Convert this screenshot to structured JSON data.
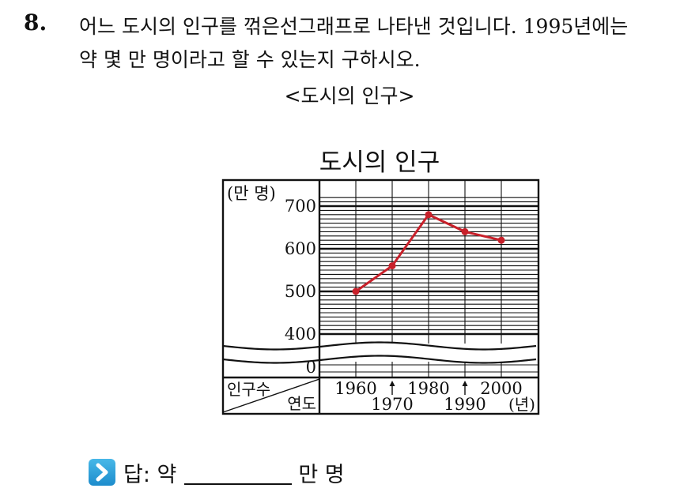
{
  "question": {
    "number": "8.",
    "line1": "어느 도시의 인구를 꺾은선그래프로 나타낸 것입니다. 1995년에는",
    "line2": "약 몇 만 명이라고 할 수 있는지 구하시오.",
    "caption": "<도시의 인구>"
  },
  "chart_data": {
    "type": "line",
    "title": "도시의 인구",
    "ylabel": "(만 명)",
    "xlabel": "(년)",
    "corner_row_label": "인구수",
    "corner_col_label": "연도",
    "x": [
      1960,
      1970,
      1980,
      1990,
      2000
    ],
    "y": [
      500,
      560,
      680,
      640,
      620
    ],
    "series_color": "#c8202a",
    "x_tick_labels_top": [
      "1960",
      "1980",
      "2000"
    ],
    "x_tick_labels_bottom": [
      "1970",
      "1990"
    ],
    "y_tick_labels": [
      "700",
      "600",
      "500",
      "400",
      "0"
    ],
    "ylim": [
      400,
      720
    ],
    "y_axis_break": true,
    "grid": true
  },
  "answer": {
    "label": "답: 약",
    "unit": "만 명",
    "icon": "chevron-right-icon",
    "icon_color": "#2a9ad8"
  }
}
